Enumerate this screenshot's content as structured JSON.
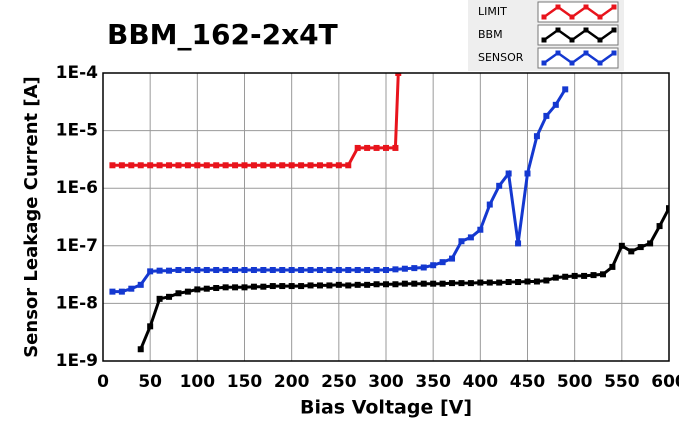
{
  "chart_data": {
    "type": "line",
    "title": "BBM_162-2x4T",
    "x_label": "Bias Voltage [V]",
    "y_label": "Sensor Leakage Current [A]",
    "xlim": [
      0,
      600
    ],
    "xticks": [
      0,
      50,
      100,
      150,
      200,
      250,
      300,
      350,
      400,
      450,
      500,
      550,
      600
    ],
    "ylim": [
      1e-09,
      0.0001
    ],
    "log_y": true,
    "grid": true,
    "legend": "top-right",
    "yticks": [
      {
        "value": 1e-09,
        "label": "1E-9"
      },
      {
        "value": 1e-08,
        "label": "1E-8"
      },
      {
        "value": 1e-07,
        "label": "1E-7"
      },
      {
        "value": 1e-06,
        "label": "1E-6"
      },
      {
        "value": 1e-05,
        "label": "1E-5"
      },
      {
        "value": 0.0001,
        "label": "1E-4"
      }
    ],
    "series": [
      {
        "name": "LIMIT",
        "color": "#e8141c",
        "x": [
          10,
          20,
          30,
          40,
          50,
          60,
          70,
          80,
          90,
          100,
          110,
          120,
          130,
          140,
          150,
          160,
          170,
          180,
          190,
          200,
          210,
          220,
          230,
          240,
          250,
          260,
          270,
          280,
          290,
          300,
          310,
          313
        ],
        "values": [
          2.5e-06,
          2.5e-06,
          2.5e-06,
          2.5e-06,
          2.5e-06,
          2.5e-06,
          2.5e-06,
          2.5e-06,
          2.5e-06,
          2.5e-06,
          2.5e-06,
          2.5e-06,
          2.5e-06,
          2.5e-06,
          2.5e-06,
          2.5e-06,
          2.5e-06,
          2.5e-06,
          2.5e-06,
          2.5e-06,
          2.5e-06,
          2.5e-06,
          2.5e-06,
          2.5e-06,
          2.5e-06,
          2.5e-06,
          5e-06,
          5e-06,
          5e-06,
          5e-06,
          5e-06,
          0.0001
        ]
      },
      {
        "name": "BBM",
        "color": "#000000",
        "x": [
          40,
          50,
          60,
          70,
          80,
          90,
          100,
          110,
          120,
          130,
          140,
          150,
          160,
          170,
          180,
          190,
          200,
          210,
          220,
          230,
          240,
          250,
          260,
          270,
          280,
          290,
          300,
          310,
          320,
          330,
          340,
          350,
          360,
          370,
          380,
          390,
          400,
          410,
          420,
          430,
          440,
          450,
          460,
          470,
          480,
          490,
          500,
          510,
          520,
          530,
          540,
          550,
          560,
          570,
          580,
          590,
          600
        ],
        "values": [
          1.6e-09,
          4e-09,
          1.2e-08,
          1.3e-08,
          1.5e-08,
          1.6e-08,
          1.75e-08,
          1.8e-08,
          1.85e-08,
          1.9e-08,
          1.9e-08,
          1.9e-08,
          1.95e-08,
          1.95e-08,
          2e-08,
          2e-08,
          2e-08,
          2e-08,
          2.05e-08,
          2.05e-08,
          2.05e-08,
          2.1e-08,
          2.05e-08,
          2.1e-08,
          2.1e-08,
          2.15e-08,
          2.15e-08,
          2.15e-08,
          2.2e-08,
          2.2e-08,
          2.2e-08,
          2.2e-08,
          2.2e-08,
          2.25e-08,
          2.25e-08,
          2.25e-08,
          2.3e-08,
          2.3e-08,
          2.3e-08,
          2.35e-08,
          2.35e-08,
          2.4e-08,
          2.4e-08,
          2.5e-08,
          2.8e-08,
          2.9e-08,
          3e-08,
          3e-08,
          3.1e-08,
          3.2e-08,
          4.3e-08,
          1e-07,
          8e-08,
          9.5e-08,
          1.1e-07,
          2.2e-07,
          4.5e-07
        ]
      },
      {
        "name": "SENSOR",
        "color": "#1438d0",
        "x": [
          10,
          20,
          30,
          40,
          50,
          60,
          70,
          80,
          90,
          100,
          110,
          120,
          130,
          140,
          150,
          160,
          170,
          180,
          190,
          200,
          210,
          220,
          230,
          240,
          250,
          260,
          270,
          280,
          290,
          300,
          310,
          320,
          330,
          340,
          350,
          360,
          370,
          380,
          390,
          400,
          410,
          420,
          430,
          440,
          450,
          460,
          470,
          480,
          490
        ],
        "values": [
          1.6e-08,
          1.6e-08,
          1.8e-08,
          2.1e-08,
          3.6e-08,
          3.7e-08,
          3.7e-08,
          3.8e-08,
          3.8e-08,
          3.8e-08,
          3.8e-08,
          3.8e-08,
          3.8e-08,
          3.8e-08,
          3.8e-08,
          3.8e-08,
          3.8e-08,
          3.8e-08,
          3.8e-08,
          3.8e-08,
          3.8e-08,
          3.8e-08,
          3.8e-08,
          3.8e-08,
          3.8e-08,
          3.8e-08,
          3.8e-08,
          3.8e-08,
          3.8e-08,
          3.8e-08,
          3.9e-08,
          4e-08,
          4.1e-08,
          4.2e-08,
          4.6e-08,
          5.2e-08,
          6e-08,
          1.2e-07,
          1.4e-07,
          1.9e-07,
          5.2e-07,
          1.1e-06,
          1.8e-06,
          1.1e-07,
          1.8e-06,
          8e-06,
          1.8e-05,
          2.8e-05,
          5.2e-05
        ]
      }
    ]
  }
}
